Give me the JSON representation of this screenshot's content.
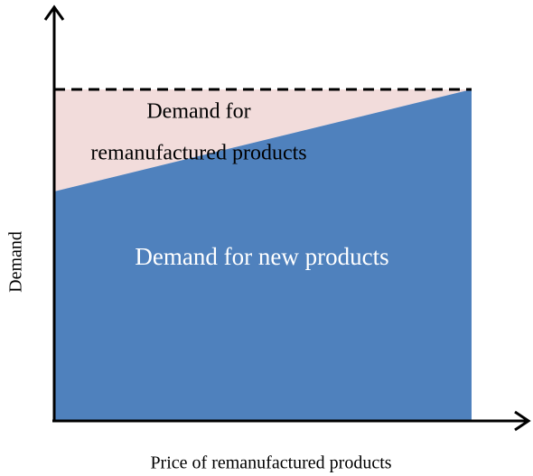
{
  "diagram": {
    "regions": [
      {
        "label_lines": [
          "Demand for",
          "remanufactured products"
        ]
      },
      {
        "label_lines": [
          "Demand for new products"
        ]
      }
    ],
    "y_axis_label": "Demand",
    "x_axis_label": "Price of remanufactured products"
  }
}
